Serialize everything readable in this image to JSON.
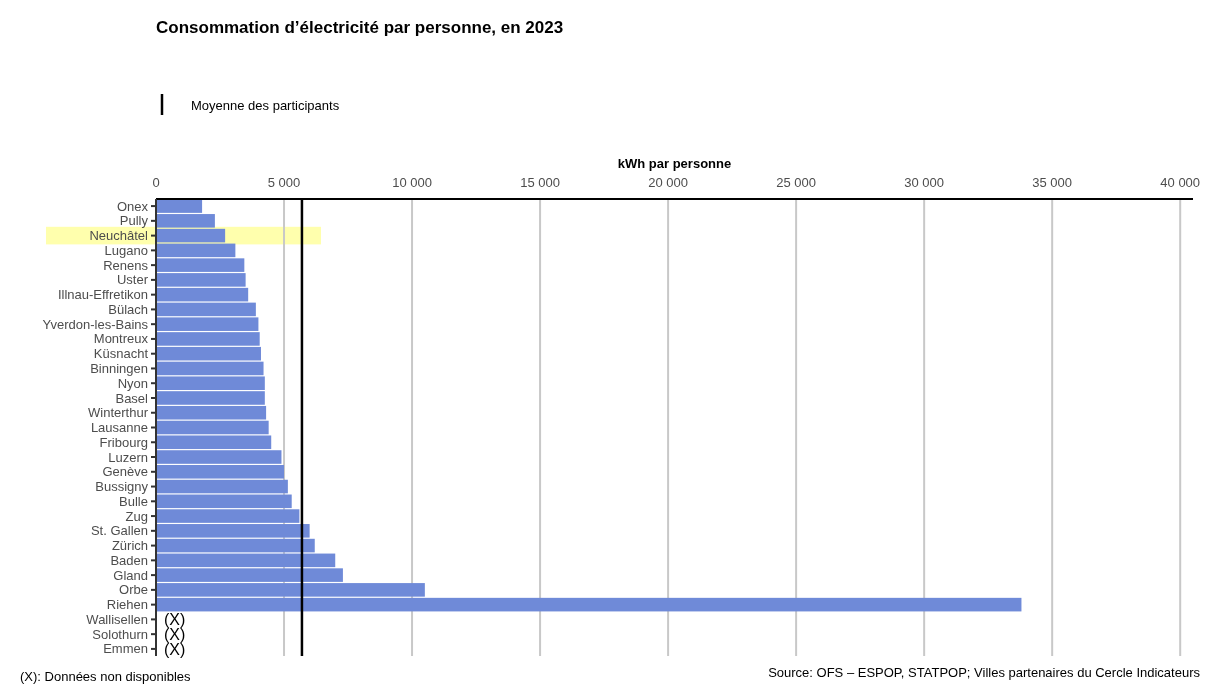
{
  "chart_data": {
    "type": "bar",
    "orientation": "horizontal",
    "title": "Consommation d’électricité par personne, en 2023",
    "xlabel": "kWh par personne",
    "categories": [
      "Onex",
      "Pully",
      "Neuchâtel",
      "Lugano",
      "Renens",
      "Uster",
      "Illnau-Effretikon",
      "Bülach",
      "Yverdon-les-Bains",
      "Montreux",
      "Küsnacht",
      "Binningen",
      "Nyon",
      "Basel",
      "Winterthur",
      "Lausanne",
      "Fribourg",
      "Luzern",
      "Genève",
      "Bussigny",
      "Bulle",
      "Zug",
      "St. Gallen",
      "Zürich",
      "Baden",
      "Gland",
      "Orbe",
      "Riehen",
      "Wallisellen",
      "Solothurn",
      "Emmen"
    ],
    "values": [
      1800,
      2300,
      2700,
      3100,
      3450,
      3500,
      3600,
      3900,
      4000,
      4050,
      4100,
      4200,
      4250,
      4250,
      4300,
      4400,
      4500,
      4900,
      5000,
      5150,
      5300,
      5600,
      6000,
      6200,
      7000,
      7300,
      10500,
      33800,
      null,
      null,
      null
    ],
    "value_labels": [
      null,
      null,
      null,
      null,
      null,
      null,
      null,
      null,
      null,
      null,
      null,
      null,
      null,
      null,
      null,
      null,
      null,
      null,
      null,
      null,
      null,
      null,
      null,
      null,
      null,
      null,
      null,
      null,
      "(X)",
      "(X)",
      "(X)"
    ],
    "color": "#6f8ad8",
    "xlim": [
      0,
      40500
    ],
    "xticks": [
      0,
      {
        "value": 5000,
        "label": "5 000"
      },
      {
        "value": 10000,
        "label": "10 000"
      },
      {
        "value": 15000,
        "label": "15 000"
      },
      {
        "value": 20000,
        "label": "20 000"
      },
      {
        "value": 25000,
        "label": "25 000"
      },
      {
        "value": 30000,
        "label": "30 000"
      },
      {
        "value": 35000,
        "label": "35 000"
      },
      {
        "value": 40000,
        "label": "40 000"
      }
    ],
    "grid": "x",
    "legend": "top left",
    "ref_lines": [
      {
        "axis": "x",
        "value": 5700,
        "label": "Moyenne des participants",
        "color": "#000000"
      }
    ],
    "bands": [
      {
        "axis": "y",
        "from": "Neuchâtel",
        "to": "Neuchâtel",
        "color": "#ffff99"
      }
    ],
    "annotations": [
      "(X): Données non disponibles",
      "Source: OFS – ESPOP, STATPOP; Villes partenaires du Cercle Indicateurs"
    ]
  }
}
